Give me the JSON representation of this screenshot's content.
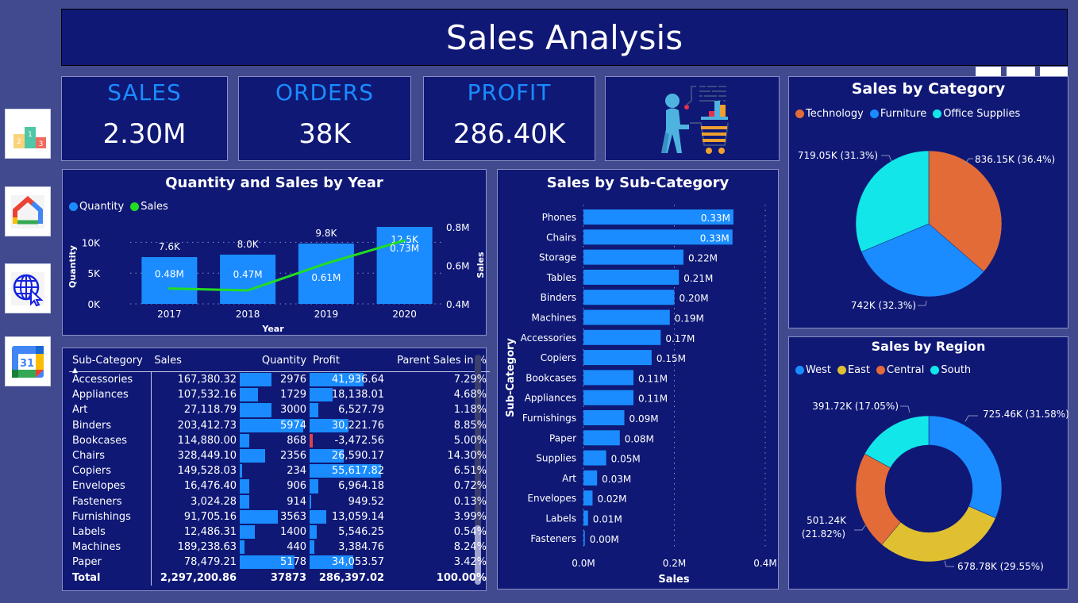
{
  "header": {
    "title": "Sales Analysis"
  },
  "sidebar": {
    "items": [
      {
        "icon": "leaderboard-podium-icon",
        "label": "Ranking"
      },
      {
        "icon": "home-icon",
        "label": "Home"
      },
      {
        "icon": "web-globe-cursor-icon",
        "label": "Web"
      },
      {
        "icon": "calendar-icon",
        "label": "Calendar",
        "day": "31"
      }
    ]
  },
  "kpis": [
    {
      "label": "SALES",
      "value": "2.30M"
    },
    {
      "label": "ORDERS",
      "value": "38K"
    },
    {
      "label": "PROFIT",
      "value": "286.40K"
    }
  ],
  "colors": {
    "background": "#414a8f",
    "panel": "#0f1875",
    "accent_blue": "#1a8cff",
    "sales_line": "#22dd22",
    "technology": "#e36b38",
    "furniture": "#1a8cff",
    "office_supplies": "#12e6e8",
    "west": "#1a8cff",
    "east": "#e0c030",
    "central": "#e36b38",
    "south": "#12e6e8",
    "negative": "#d64550"
  },
  "chart_data": [
    {
      "id": "qty_sales_year",
      "type": "bar",
      "title": "Quantity and Sales by Year",
      "xlabel": "Year",
      "ylabel": "Quantity",
      "y2label": "Sales",
      "legend": [
        {
          "name": "Quantity",
          "color": "#1a8cff"
        },
        {
          "name": "Sales",
          "color": "#22dd22"
        }
      ],
      "legend_position": "top-left",
      "categories": [
        "2017",
        "2018",
        "2019",
        "2020"
      ],
      "series": [
        {
          "name": "Quantity",
          "kind": "bar",
          "values": [
            7600,
            8000,
            9800,
            12500
          ],
          "labels": [
            "7.6K",
            "8.0K",
            "9.8K",
            "12.5K"
          ]
        },
        {
          "name": "Sales",
          "kind": "line",
          "values": [
            0.48,
            0.47,
            0.61,
            0.73
          ],
          "labels": [
            "0.48M",
            "0.47M",
            "0.61M",
            "0.73M"
          ]
        }
      ],
      "ylim": [
        0,
        12500
      ],
      "yticks": [
        "0K",
        "5K",
        "10K"
      ],
      "y2lim": [
        0.4,
        0.8
      ],
      "y2ticks": [
        "0.4M",
        "0.6M",
        "0.8M"
      ],
      "grid": true
    },
    {
      "id": "sales_subcat",
      "type": "bar",
      "orientation": "horizontal",
      "title": "Sales by Sub-Category",
      "xlabel": "Sales",
      "ylabel": "Sub-Category",
      "categories": [
        "Phones",
        "Chairs",
        "Storage",
        "Tables",
        "Binders",
        "Machines",
        "Accessories",
        "Copiers",
        "Bookcases",
        "Appliances",
        "Furnishings",
        "Paper",
        "Supplies",
        "Art",
        "Envelopes",
        "Labels",
        "Fasteners"
      ],
      "values": [
        0.33,
        0.328,
        0.22,
        0.21,
        0.2,
        0.19,
        0.17,
        0.15,
        0.11,
        0.11,
        0.09,
        0.08,
        0.05,
        0.03,
        0.02,
        0.01,
        0.003
      ],
      "labels": [
        "0.33M",
        "0.33M",
        "0.22M",
        "0.21M",
        "0.20M",
        "0.19M",
        "0.17M",
        "0.15M",
        "0.11M",
        "0.11M",
        "0.09M",
        "0.08M",
        "0.05M",
        "0.03M",
        "0.02M",
        "0.01M",
        "0.00M"
      ],
      "xlim": [
        0,
        0.4
      ],
      "xticks": [
        "0.0M",
        "0.2M",
        "0.4M"
      ],
      "grid": true
    },
    {
      "id": "sales_category",
      "type": "pie",
      "title": "Sales by Category",
      "legend_position": "top-left",
      "slices": [
        {
          "name": "Technology",
          "value": 836.15,
          "label": "836.15K (36.4%)",
          "color": "#e36b38"
        },
        {
          "name": "Furniture",
          "value": 742,
          "label": "742K (32.3%)",
          "color": "#1a8cff"
        },
        {
          "name": "Office Supplies",
          "value": 719.05,
          "label": "719.05K (31.3%)",
          "color": "#12e6e8"
        }
      ]
    },
    {
      "id": "sales_region",
      "type": "pie",
      "donut": true,
      "title": "Sales by Region",
      "legend_position": "top-left",
      "slices": [
        {
          "name": "West",
          "value": 725.46,
          "label": "725.46K (31.58%)",
          "color": "#1a8cff"
        },
        {
          "name": "East",
          "value": 678.78,
          "label": "678.78K (29.55%)",
          "color": "#e0c030"
        },
        {
          "name": "Central",
          "value": 501.24,
          "label": "501.24K (21.82%)",
          "label_line1": "501.24K",
          "label_line2": "(21.82%)",
          "color": "#e36b38"
        },
        {
          "name": "South",
          "value": 391.72,
          "label": "391.72K (17.05%)",
          "color": "#12e6e8"
        }
      ]
    }
  ],
  "table": {
    "columns": [
      "Sub-Category",
      "Sales",
      "Quantity",
      "Profit",
      "Parent Sales in %"
    ],
    "sort_indicator": "▲",
    "max_quantity": 5974,
    "max_profit": 55617.82,
    "rows": [
      {
        "name": "Accessories",
        "sales": "167,380.32",
        "qty": 2976,
        "qty_text": "2976",
        "profit": 41936.64,
        "profit_text": "41,936.64",
        "pct": "7.29%"
      },
      {
        "name": "Appliances",
        "sales": "107,532.16",
        "qty": 1729,
        "qty_text": "1729",
        "profit": 18138.01,
        "profit_text": "18,138.01",
        "pct": "4.68%"
      },
      {
        "name": "Art",
        "sales": "27,118.79",
        "qty": 3000,
        "qty_text": "3000",
        "profit": 6527.79,
        "profit_text": "6,527.79",
        "pct": "1.18%"
      },
      {
        "name": "Binders",
        "sales": "203,412.73",
        "qty": 5974,
        "qty_text": "5974",
        "profit": 30221.76,
        "profit_text": "30,221.76",
        "pct": "8.85%"
      },
      {
        "name": "Bookcases",
        "sales": "114,880.00",
        "qty": 868,
        "qty_text": "868",
        "profit": -3472.56,
        "profit_text": "-3,472.56",
        "pct": "5.00%"
      },
      {
        "name": "Chairs",
        "sales": "328,449.10",
        "qty": 2356,
        "qty_text": "2356",
        "profit": 26590.17,
        "profit_text": "26,590.17",
        "pct": "14.30%"
      },
      {
        "name": "Copiers",
        "sales": "149,528.03",
        "qty": 234,
        "qty_text": "234",
        "profit": 55617.82,
        "profit_text": "55,617.82",
        "pct": "6.51%"
      },
      {
        "name": "Envelopes",
        "sales": "16,476.40",
        "qty": 906,
        "qty_text": "906",
        "profit": 6964.18,
        "profit_text": "6,964.18",
        "pct": "0.72%"
      },
      {
        "name": "Fasteners",
        "sales": "3,024.28",
        "qty": 914,
        "qty_text": "914",
        "profit": 949.52,
        "profit_text": "949.52",
        "pct": "0.13%"
      },
      {
        "name": "Furnishings",
        "sales": "91,705.16",
        "qty": 3563,
        "qty_text": "3563",
        "profit": 13059.14,
        "profit_text": "13,059.14",
        "pct": "3.99%"
      },
      {
        "name": "Labels",
        "sales": "12,486.31",
        "qty": 1400,
        "qty_text": "1400",
        "profit": 5546.25,
        "profit_text": "5,546.25",
        "pct": "0.54%"
      },
      {
        "name": "Machines",
        "sales": "189,238.63",
        "qty": 440,
        "qty_text": "440",
        "profit": 3384.76,
        "profit_text": "3,384.76",
        "pct": "8.24%"
      },
      {
        "name": "Paper",
        "sales": "78,479.21",
        "qty": 5178,
        "qty_text": "5178",
        "profit": 34053.57,
        "profit_text": "34,053.57",
        "pct": "3.42%"
      }
    ],
    "total": {
      "name": "Total",
      "sales": "2,297,200.86",
      "qty_text": "37873",
      "profit_text": "286,397.02",
      "pct": "100.00%"
    }
  }
}
